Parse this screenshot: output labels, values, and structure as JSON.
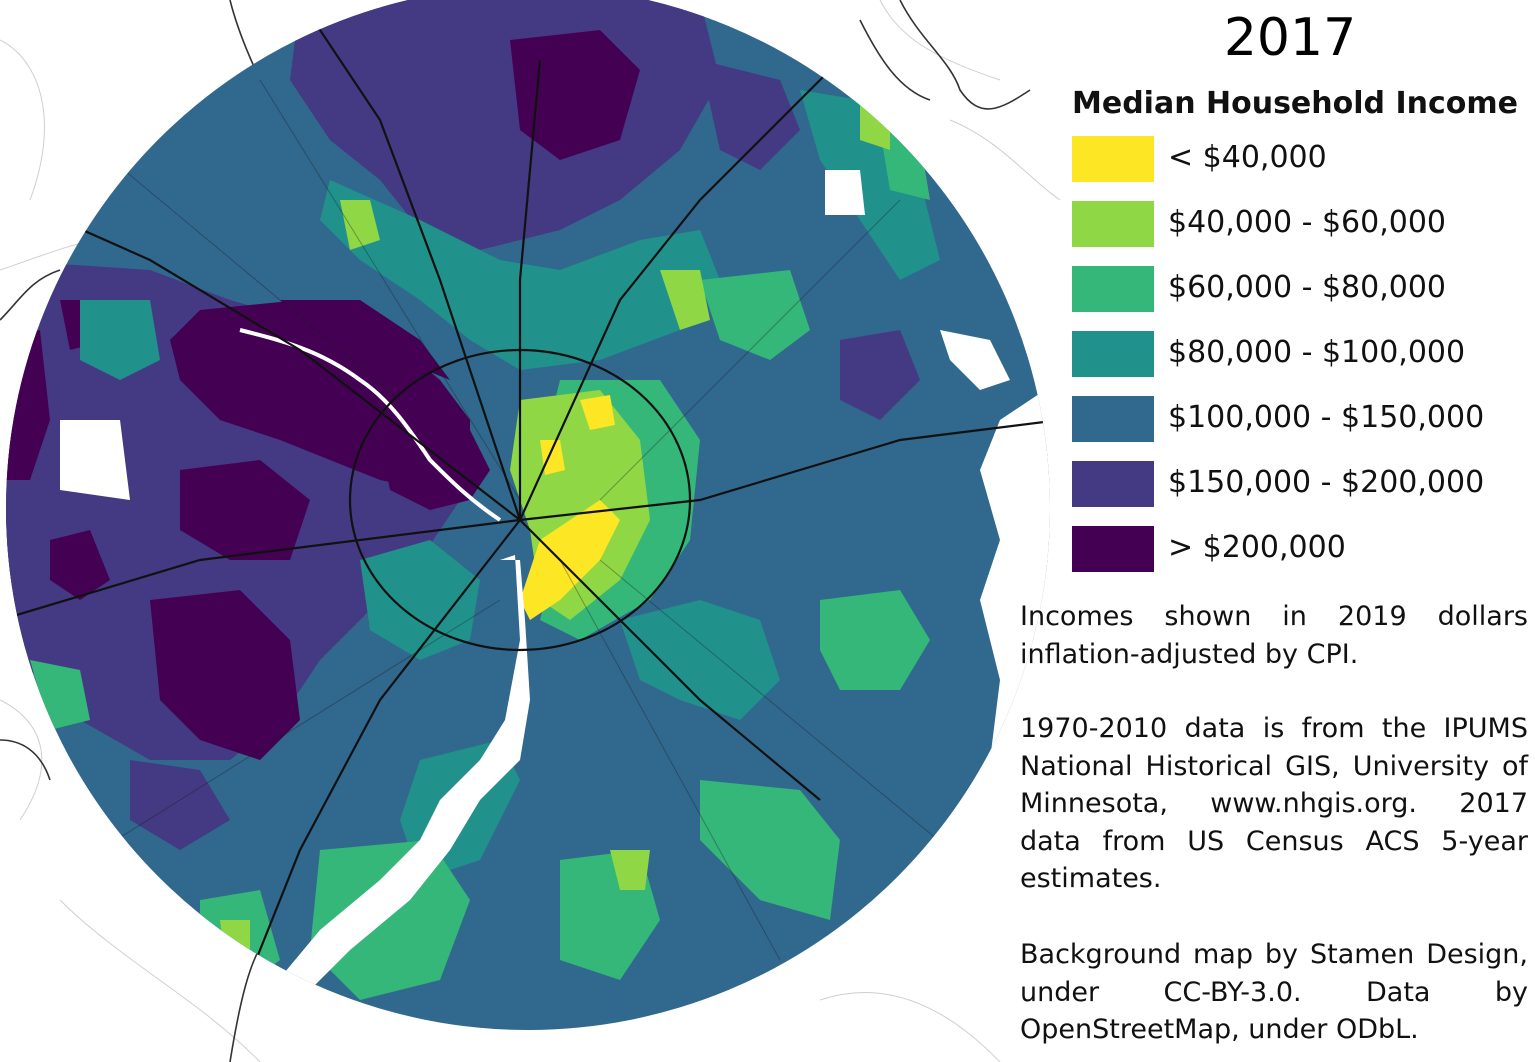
{
  "map": {
    "year": "2017",
    "legend": {
      "title": "Median Household Income",
      "items": [
        {
          "label": "< $40,000",
          "color": "#fde725"
        },
        {
          "label": "$40,000 - $60,000",
          "color": "#8fd744"
        },
        {
          "label": "$60,000 - $80,000",
          "color": "#35b779"
        },
        {
          "label": "$80,000 - $100,000",
          "color": "#21918c"
        },
        {
          "label": "$100,000 - $150,000",
          "color": "#31688e"
        },
        {
          "label": "$150,000 - $200,000",
          "color": "#443983"
        },
        {
          "label": "> $200,000",
          "color": "#440154"
        }
      ]
    },
    "notes": {
      "inflation": "Incomes shown in 2019 dollars inflation-adjusted by CPI.",
      "sources": "1970-2010 data is from the IPUMS National Historical GIS, University of Minnesota, www.nhgis.org. 2017 data from US Census ACS 5-year estimates.",
      "basemap": "Background map by Stamen Design, under CC-BY-3.0. Data by OpenStreetMap, under ODbL."
    }
  }
}
